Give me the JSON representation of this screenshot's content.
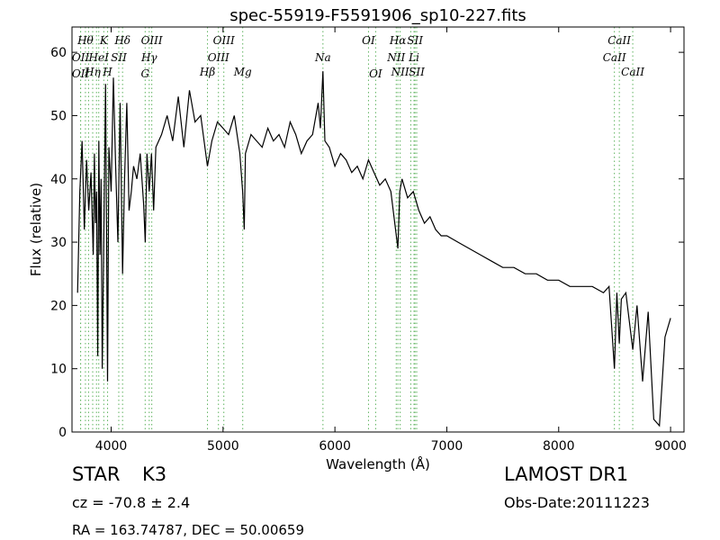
{
  "chart_data": {
    "type": "line",
    "title": "spec-55919-F5591906_sp10-227.fits",
    "xlabel": "Wavelength (Å)",
    "ylabel": "Flux (relative)",
    "xlim": [
      3650,
      9120
    ],
    "ylim": [
      0,
      64
    ],
    "x_ticks": [
      4000,
      5000,
      6000,
      7000,
      8000,
      9000
    ],
    "y_ticks": [
      0,
      10,
      20,
      30,
      40,
      50,
      60
    ],
    "grid": false,
    "line_color": "#000000",
    "marker_color": "#5fb35f",
    "series": [
      {
        "x": [
          3700,
          3720,
          3740,
          3760,
          3780,
          3800,
          3820,
          3840,
          3850,
          3860,
          3870,
          3880,
          3890,
          3900,
          3910,
          3920,
          3934,
          3950,
          3968,
          3980,
          4000,
          4020,
          4040,
          4060,
          4080,
          4102,
          4120,
          4140,
          4160,
          4180,
          4200,
          4230,
          4260,
          4290,
          4305,
          4320,
          4340,
          4360,
          4380,
          4400,
          4450,
          4500,
          4550,
          4600,
          4650,
          4700,
          4750,
          4800,
          4861,
          4900,
          4950,
          5000,
          5050,
          5100,
          5150,
          5175,
          5190,
          5200,
          5250,
          5300,
          5350,
          5400,
          5450,
          5500,
          5550,
          5600,
          5650,
          5700,
          5750,
          5800,
          5850,
          5870,
          5893,
          5910,
          5950,
          6000,
          6050,
          6100,
          6150,
          6200,
          6250,
          6300,
          6350,
          6400,
          6450,
          6500,
          6563,
          6580,
          6600,
          6650,
          6700,
          6750,
          6800,
          6850,
          6900,
          6950,
          7000,
          7100,
          7200,
          7300,
          7400,
          7500,
          7600,
          7700,
          7800,
          7900,
          8000,
          8100,
          8200,
          8300,
          8400,
          8450,
          8498,
          8520,
          8542,
          8560,
          8600,
          8662,
          8700,
          8750,
          8800,
          8850,
          8900,
          8950,
          9000
        ],
        "y": [
          22,
          38,
          46,
          32,
          43,
          35,
          41,
          28,
          44,
          33,
          38,
          12,
          46,
          28,
          40,
          10,
          30,
          55,
          8,
          45,
          38,
          56,
          42,
          30,
          52,
          25,
          40,
          52,
          35,
          38,
          42,
          40,
          44,
          36,
          30,
          44,
          38,
          44,
          35,
          45,
          47,
          50,
          46,
          53,
          45,
          54,
          49,
          50,
          42,
          46,
          49,
          48,
          47,
          50,
          44,
          38,
          32,
          44,
          47,
          46,
          45,
          48,
          46,
          47,
          45,
          49,
          47,
          44,
          46,
          47,
          52,
          48,
          57,
          46,
          45,
          42,
          44,
          43,
          41,
          42,
          40,
          43,
          41,
          39,
          40,
          38,
          29,
          38,
          40,
          37,
          38,
          35,
          33,
          34,
          32,
          31,
          31,
          30,
          29,
          28,
          27,
          26,
          26,
          25,
          25,
          24,
          24,
          23,
          23,
          23,
          22,
          23,
          10,
          22,
          14,
          21,
          22,
          13,
          20,
          8,
          19,
          2,
          1,
          15,
          18
        ]
      }
    ],
    "lines": [
      {
        "w": 3727,
        "label": "OII",
        "row": 2
      },
      {
        "w": 3727,
        "label": "OII",
        "row": 4
      },
      {
        "w": 3770,
        "label": "Hθ",
        "row": 1
      },
      {
        "w": 3798,
        "label": "",
        "row": 0
      },
      {
        "w": 3835,
        "label": "Hη",
        "row": 3
      },
      {
        "w": 3869,
        "label": "",
        "row": 0
      },
      {
        "w": 3889,
        "label": "HeI",
        "row": 2
      },
      {
        "w": 3934,
        "label": "K",
        "row": 1
      },
      {
        "w": 3968,
        "label": "H",
        "row": 3
      },
      {
        "w": 4068,
        "label": "SII",
        "row": 2
      },
      {
        "w": 4102,
        "label": "Hδ",
        "row": 1
      },
      {
        "w": 4304,
        "label": "G",
        "row": 4
      },
      {
        "w": 4340,
        "label": "Hγ",
        "row": 2
      },
      {
        "w": 4363,
        "label": "OIII",
        "row": 1
      },
      {
        "w": 4861,
        "label": "Hβ",
        "row": 3
      },
      {
        "w": 4959,
        "label": "OIII",
        "row": 2
      },
      {
        "w": 5007,
        "label": "OIII",
        "row": 1
      },
      {
        "w": 5176,
        "label": "Mg",
        "row": 3
      },
      {
        "w": 5893,
        "label": "Na",
        "row": 2
      },
      {
        "w": 6300,
        "label": "OI",
        "row": 1
      },
      {
        "w": 6364,
        "label": "OI",
        "row": 4
      },
      {
        "w": 6548,
        "label": "NII",
        "row": 2
      },
      {
        "w": 6563,
        "label": "Hα",
        "row": 1
      },
      {
        "w": 6583,
        "label": "NII",
        "row": 3
      },
      {
        "w": 6678,
        "label": "",
        "row": 0
      },
      {
        "w": 6707,
        "label": "Li",
        "row": 2
      },
      {
        "w": 6716,
        "label": "SII",
        "row": 1
      },
      {
        "w": 6731,
        "label": "SII",
        "row": 3
      },
      {
        "w": 8498,
        "label": "CaII",
        "row": 2
      },
      {
        "w": 8542,
        "label": "CaII",
        "row": 1
      },
      {
        "w": 8662,
        "label": "CaII",
        "row": 3
      }
    ]
  },
  "info": {
    "class_label": "STAR",
    "subclass": "K3",
    "cz": "cz = -70.8 ± 2.4",
    "radec": "RA = 163.74787, DEC = 50.00659",
    "survey": "LAMOST DR1",
    "obs_date": "Obs-Date:20111223"
  }
}
